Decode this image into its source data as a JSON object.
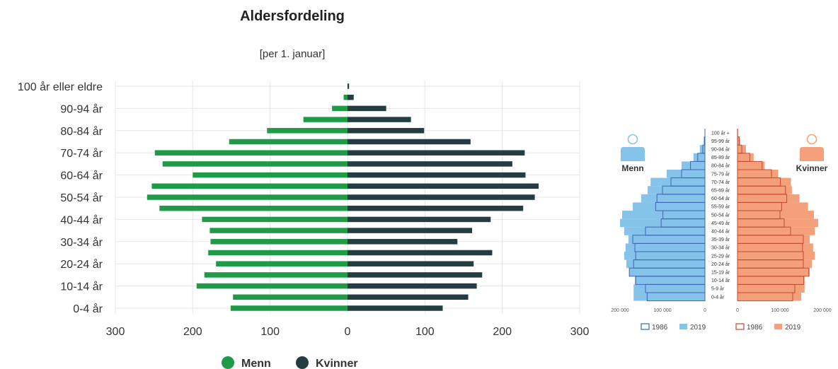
{
  "chart_data": [
    {
      "type": "bar",
      "orientation": "horizontal",
      "title": "Aldersfordeling",
      "subtitle": "[per 1. januar]",
      "categories": [
        "100 år eller eldre",
        "95-99 år",
        "90-94 år",
        "85-89 år",
        "80-84 år",
        "75-79 år",
        "70-74 år",
        "65-69 år",
        "60-64 år",
        "55-59 år",
        "50-54 år",
        "45-49 år",
        "40-44 år",
        "35-39 år",
        "30-34 år",
        "25-29 år",
        "20-24 år",
        "15-19 år",
        "10-14 år",
        "5-9 år",
        "0-4 år"
      ],
      "tick_labels": [
        "100 år eller eldre",
        "90-94 år",
        "80-84 år",
        "70-74 år",
        "60-64 år",
        "50-54 år",
        "40-44 år",
        "30-34 år",
        "20-24 år",
        "10-14 år",
        "0-4 år"
      ],
      "series": [
        {
          "name": "Menn",
          "color": "#1f9b48",
          "values": [
            0,
            5,
            20,
            57,
            104,
            153,
            249,
            239,
            200,
            253,
            259,
            243,
            188,
            178,
            177,
            180,
            170,
            185,
            195,
            148,
            151
          ]
        },
        {
          "name": "Kvinner",
          "color": "#253c42",
          "values": [
            2,
            8,
            50,
            82,
            99,
            159,
            229,
            213,
            230,
            247,
            242,
            227,
            185,
            161,
            142,
            187,
            163,
            174,
            167,
            156,
            123
          ]
        }
      ],
      "xlim": [
        -300,
        300
      ],
      "xticks": [
        "300",
        "200",
        "100",
        "0",
        "100",
        "200",
        "300"
      ],
      "legend_position": "bottom",
      "grid": true
    },
    {
      "type": "population-pyramid",
      "categories": [
        "100 år +",
        "95-99 år",
        "90-94 år",
        "85-89 år",
        "80-84 år",
        "75-79 år",
        "70-74 år",
        "65-69 år",
        "60-64 år",
        "55-59 år",
        "50-54 år",
        "45-49 år",
        "40-44 år",
        "35-39 år",
        "30-34 år",
        "25-29 år",
        "20-24 år",
        "15-19 år",
        "10-14 år",
        "5-9 år",
        "0-4 år"
      ],
      "left_label": "Menn",
      "right_label": "Kvinner",
      "xticks": [
        "200 000",
        "100 000",
        "0",
        "0",
        "100 000",
        "200 000"
      ],
      "xlim": [
        0,
        200000
      ],
      "colors": {
        "men_1986": "#3f63b5",
        "men_2019": "#86c3ea",
        "women_1986": "#c24a32",
        "women_2019": "#f4a07a",
        "icon_men": "#86c3ea",
        "icon_women": "#f4a07a"
      },
      "legend_labels": {
        "men_1986": "1986",
        "men_2019": "2019",
        "women_1986": "1986",
        "women_2019": "2019"
      },
      "series": [
        {
          "name": "Menn 1986",
          "values": [
            0,
            1000,
            5000,
            17000,
            34000,
            55000,
            80000,
            100000,
            113000,
            116000,
            99000,
            103000,
            140000,
            170000,
            165000,
            163000,
            168000,
            178000,
            163000,
            140000,
            136000
          ]
        },
        {
          "name": "Menn 2019",
          "values": [
            500,
            3000,
            12000,
            27000,
            55000,
            90000,
            128000,
            135000,
            150000,
            170000,
            195000,
            200000,
            190000,
            180000,
            187000,
            190000,
            185000,
            178000,
            165000,
            168000,
            168000
          ]
        },
        {
          "name": "Kvinner 1986",
          "values": [
            0,
            4000,
            10000,
            29000,
            58000,
            80000,
            101000,
            113000,
            116000,
            104000,
            100000,
            110000,
            125000,
            155000,
            153000,
            155000,
            155000,
            168000,
            156000,
            135000,
            130000
          ]
        },
        {
          "name": "Kvinner 2019",
          "values": [
            1500,
            6000,
            20000,
            38000,
            64000,
            96000,
            126000,
            128000,
            146000,
            166000,
            180000,
            190000,
            182000,
            170000,
            178000,
            182000,
            175000,
            170000,
            158000,
            158000,
            150000
          ]
        }
      ]
    }
  ]
}
